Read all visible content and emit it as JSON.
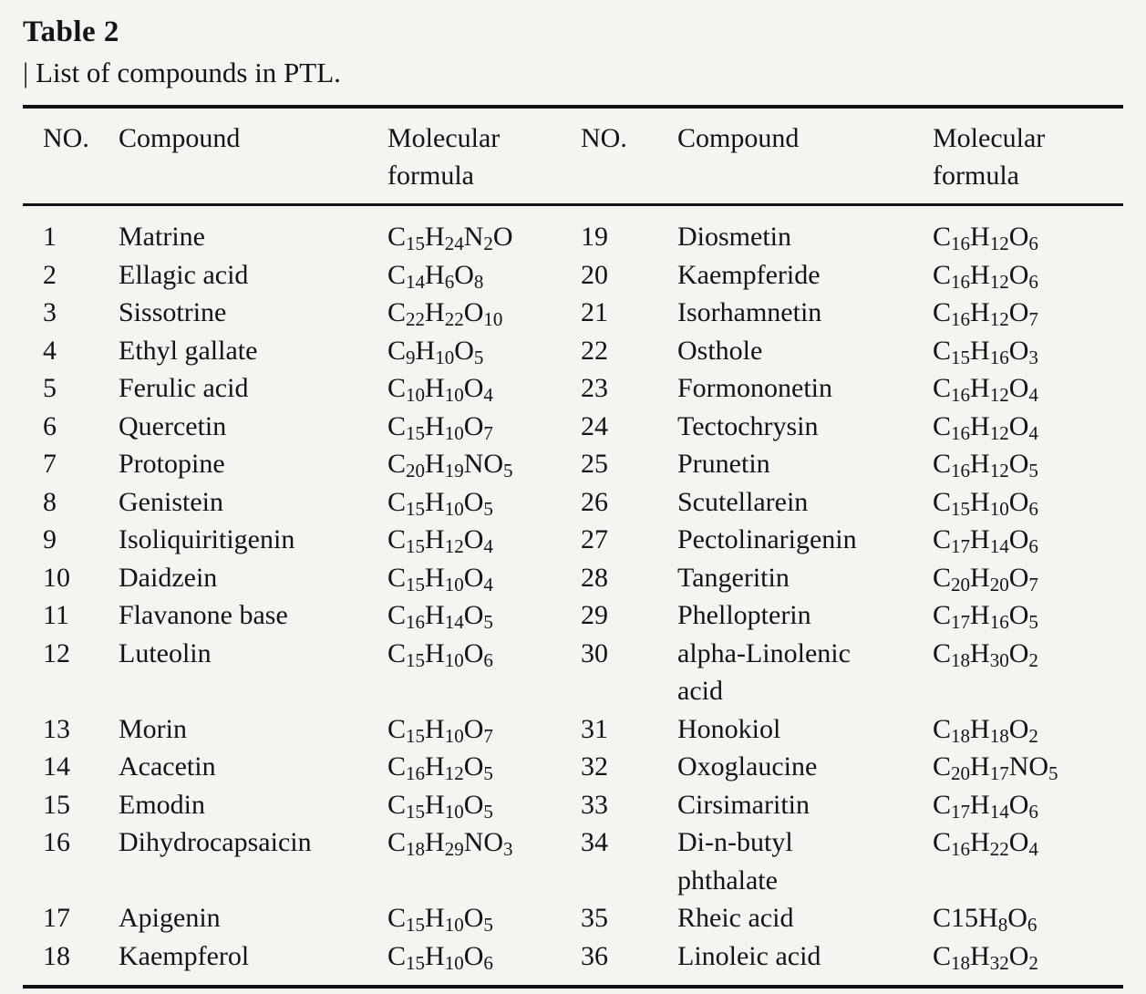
{
  "page": {
    "title": "Table 2",
    "subtitle": "| List of compounds in PTL.",
    "background_color": "#f5f4f1",
    "text_color": "#141414",
    "rule_color": "#111111"
  },
  "table": {
    "headers": {
      "no_left": "NO.",
      "compound_left": "Compound",
      "formula_left": "Molecular formula",
      "no_right": "NO.",
      "compound_right": "Compound",
      "formula_right": "Molecular formula"
    },
    "rows": [
      {
        "left": {
          "no": "1",
          "compound": "Matrine",
          "formula": "C_{15}H_{24}N_{2}O"
        },
        "right": {
          "no": "19",
          "compound": "Diosmetin",
          "formula": "C_{16}H_{12}O_{6}"
        }
      },
      {
        "left": {
          "no": "2",
          "compound": "Ellagic acid",
          "formula": "C_{14}H_{6}O_{8}"
        },
        "right": {
          "no": "20",
          "compound": "Kaempferide",
          "formula": "C_{16}H_{12}O_{6}"
        }
      },
      {
        "left": {
          "no": "3",
          "compound": "Sissotrine",
          "formula": "C_{22}H_{22}O_{10}"
        },
        "right": {
          "no": "21",
          "compound": "Isorhamnetin",
          "formula": "C_{16}H_{12}O_{7}"
        }
      },
      {
        "left": {
          "no": "4",
          "compound": "Ethyl gallate",
          "formula": "C_{9}H_{10}O_{5}"
        },
        "right": {
          "no": "22",
          "compound": "Osthole",
          "formula": "C_{15}H_{16}O_{3}"
        }
      },
      {
        "left": {
          "no": "5",
          "compound": "Ferulic acid",
          "formula": "C_{10}H_{10}O_{4}"
        },
        "right": {
          "no": "23",
          "compound": "Formononetin",
          "formula": "C_{16}H_{12}O_{4}"
        }
      },
      {
        "left": {
          "no": "6",
          "compound": "Quercetin",
          "formula": "C_{15}H_{10}O_{7}"
        },
        "right": {
          "no": "24",
          "compound": "Tectochrysin",
          "formula": "C_{16}H_{12}O_{4}"
        }
      },
      {
        "left": {
          "no": "7",
          "compound": "Protopine",
          "formula": "C_{20}H_{19}NO_{5}"
        },
        "right": {
          "no": "25",
          "compound": "Prunetin",
          "formula": "C_{16}H_{12}O_{5}"
        }
      },
      {
        "left": {
          "no": "8",
          "compound": "Genistein",
          "formula": "C_{15}H_{10}O_{5}"
        },
        "right": {
          "no": "26",
          "compound": "Scutellarein",
          "formula": "C_{15}H_{10}O_{6}"
        }
      },
      {
        "left": {
          "no": "9",
          "compound": "Isoliquiritigenin",
          "formula": "C_{15}H_{12}O_{4}"
        },
        "right": {
          "no": "27",
          "compound": "Pectolinarigenin",
          "formula": "C_{17}H_{14}O_{6}"
        }
      },
      {
        "left": {
          "no": "10",
          "compound": "Daidzein",
          "formula": "C_{15}H_{10}O_{4}"
        },
        "right": {
          "no": "28",
          "compound": "Tangeritin",
          "formula": "C_{20}H_{20}O_{7}"
        }
      },
      {
        "left": {
          "no": "11",
          "compound": "Flavanone base",
          "formula": "C_{16}H_{14}O_{5}"
        },
        "right": {
          "no": "29",
          "compound": "Phellopterin",
          "formula": "C_{17}H_{16}O_{5}"
        }
      },
      {
        "left": {
          "no": "12",
          "compound": "Luteolin",
          "formula": "C_{15}H_{10}O_{6}"
        },
        "right": {
          "no": "30",
          "compound": "alpha-Linolenic\nacid",
          "formula": "C_{18}H_{30}O_{2}"
        }
      },
      {
        "left": {
          "no": "13",
          "compound": "Morin",
          "formula": "C_{15}H_{10}O_{7}"
        },
        "right": {
          "no": "31",
          "compound": "Honokiol",
          "formula": "C_{18}H_{18}O_{2}"
        }
      },
      {
        "left": {
          "no": "14",
          "compound": "Acacetin",
          "formula": "C_{16}H_{12}O_{5}"
        },
        "right": {
          "no": "32",
          "compound": "Oxoglaucine",
          "formula": "C_{20}H_{17}NO_{5}"
        }
      },
      {
        "left": {
          "no": "15",
          "compound": "Emodin",
          "formula": "C_{15}H_{10}O_{5}"
        },
        "right": {
          "no": "33",
          "compound": "Cirsimaritin",
          "formula": "C_{17}H_{14}O_{6}"
        }
      },
      {
        "left": {
          "no": "16",
          "compound": "Dihydrocapsaicin",
          "formula": "C_{18}H_{29}NO_{3}"
        },
        "right": {
          "no": "34",
          "compound": "Di-n-butyl\nphthalate",
          "formula": "C_{16}H_{22}O_{4}"
        }
      },
      {
        "left": {
          "no": "17",
          "compound": "Apigenin",
          "formula": "C_{15}H_{10}O_{5}"
        },
        "right": {
          "no": "35",
          "compound": "Rheic acid",
          "formula": "C15H_{8}O_{6}"
        }
      },
      {
        "left": {
          "no": "18",
          "compound": "Kaempferol",
          "formula": "C_{15}H_{10}O_{6}"
        },
        "right": {
          "no": "36",
          "compound": "Linoleic acid",
          "formula": "C_{18}H_{32}O_{2}"
        }
      }
    ]
  }
}
